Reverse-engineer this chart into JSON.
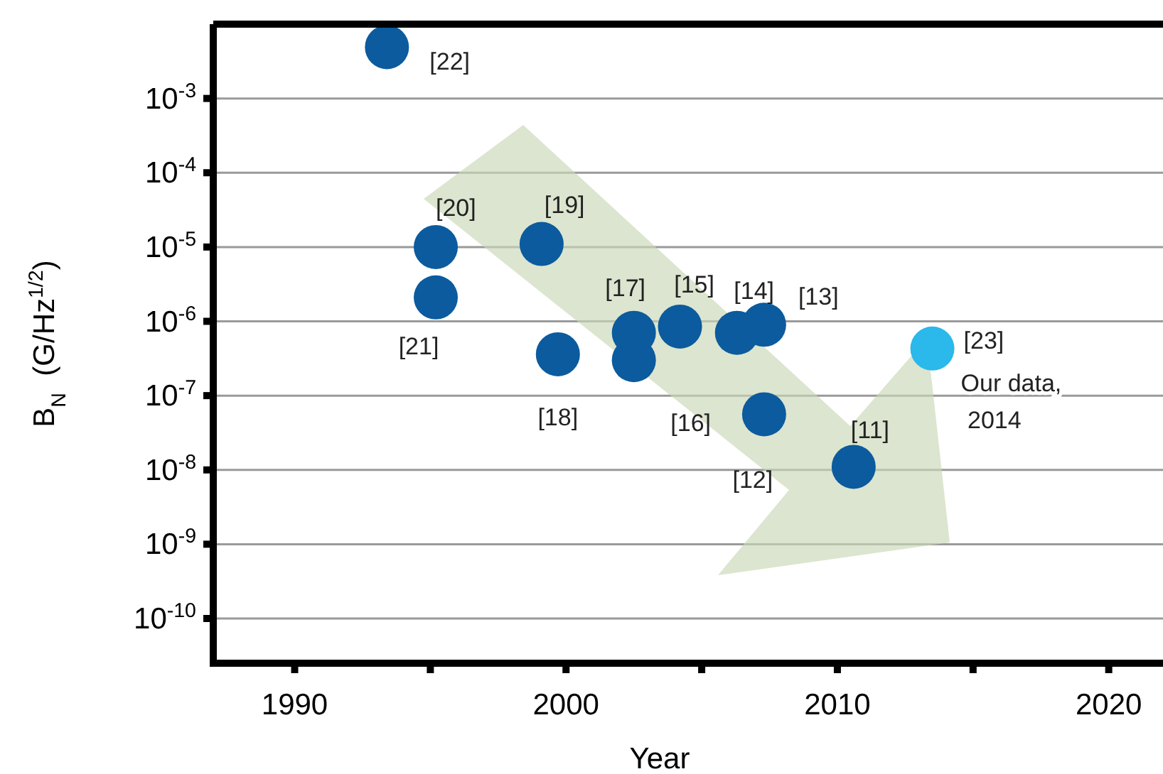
{
  "chart_data": {
    "type": "scatter",
    "xlabel": "Year",
    "ylabel": "B$_{N}$  (G/Hz$^{1/2}$)",
    "log": "y",
    "grid": "y",
    "marker": "circle",
    "xlim": [
      1987,
      2022
    ],
    "ylim": [
      2.5e-11,
      0.01
    ],
    "xticks": [
      1990,
      {
        "value": 1995,
        "label": null
      },
      2000,
      {
        "value": 2005,
        "label": null
      },
      2010,
      {
        "value": 2015,
        "label": null
      },
      2020
    ],
    "yticks": [
      {
        "value": 1e-10,
        "label": "10$^{-10}$"
      },
      {
        "value": 1e-09,
        "label": "10$^{-9}$"
      },
      {
        "value": 1e-08,
        "label": "10$^{-8}$"
      },
      {
        "value": 1e-07,
        "label": "10$^{-7}$"
      },
      {
        "value": 1e-06,
        "label": "10$^{-6}$"
      },
      {
        "value": 1e-05,
        "label": "10$^{-5}$"
      },
      {
        "value": 0.0001,
        "label": "10$^{-4}$"
      },
      {
        "value": 0.001,
        "label": "10$^{-3}$"
      }
    ],
    "series": [
      {
        "x": [
          1993.4,
          1995.2,
          1995.2,
          1999.1,
          1999.7,
          2002.5,
          2002.5,
          2004.2,
          2006.3,
          2007.3,
          2007.3,
          2010.6,
          2013.5
        ],
        "values": [
          0.0049,
          1e-05,
          2.1e-06,
          1.1e-05,
          3.6e-07,
          7e-07,
          3e-07,
          8.5e-07,
          7e-07,
          9e-07,
          5.6e-08,
          1.1e-08,
          4.3e-07
        ],
        "colors": [
          "#0b5b9e",
          "#0b5b9e",
          "#0b5b9e",
          "#0b5b9e",
          "#0b5b9e",
          "#0b5b9e",
          "#0b5b9e",
          "#0b5b9e",
          "#0b5b9e",
          "#0b5b9e",
          "#0b5b9e",
          "#0b5b9e",
          "#2bb8ea"
        ]
      }
    ],
    "annotations": [
      {
        "text": "[22]",
        "x": 1993.4,
        "y": 0.0049
      },
      {
        "text": "[20]",
        "x": 1995.2,
        "y": 1e-05
      },
      {
        "text": "[21]",
        "x": 1995.2,
        "y": 2.1e-06
      },
      {
        "text": "[19]",
        "x": 1999.1,
        "y": 1.1e-05
      },
      {
        "text": "[18]",
        "x": 1999.7,
        "y": 3.6e-07
      },
      {
        "text": "[17]",
        "x": 2002.5,
        "y": 7e-07
      },
      {
        "text": "[16]",
        "x": 2002.5,
        "y": 3e-07
      },
      {
        "text": "[15]",
        "x": 2004.2,
        "y": 8.5e-07
      },
      {
        "text": "[14]",
        "x": 2006.3,
        "y": 7e-07
      },
      {
        "text": "[13]",
        "x": 2007.3,
        "y": 9e-07
      },
      {
        "text": "[12]",
        "x": 2007.3,
        "y": 5.6e-08
      },
      {
        "text": "[11]",
        "x": 2010.6,
        "y": 1.1e-08
      },
      {
        "text": "[23]",
        "x": 2013.5,
        "y": 4.3e-07
      },
      {
        "text": "Our data,\n 2014",
        "x": 2013.5,
        "y": 4.3e-07
      }
    ]
  }
}
